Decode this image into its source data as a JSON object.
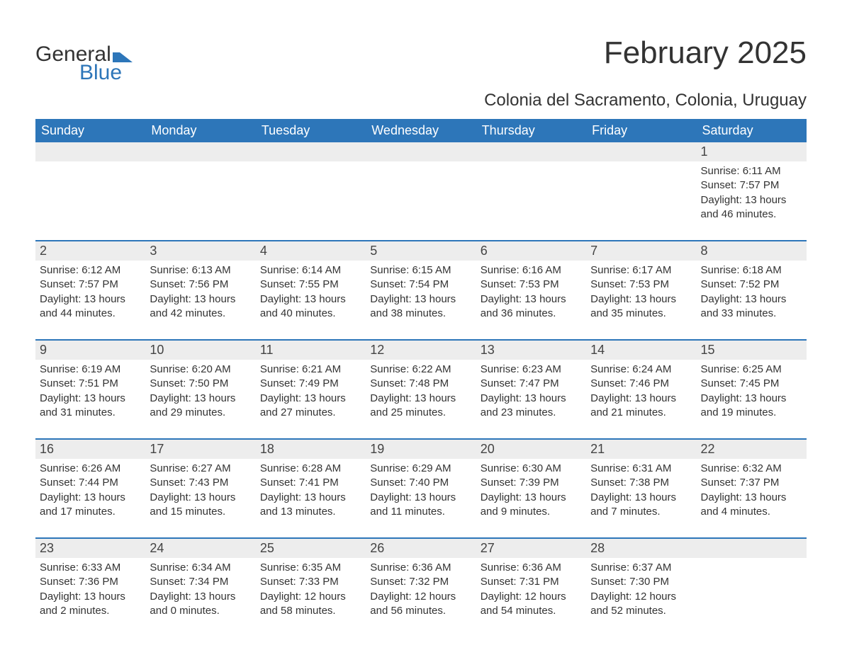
{
  "logo": {
    "text_general": "General",
    "text_blue": "Blue",
    "shape_color": "#2d76b9"
  },
  "title": "February 2025",
  "location": "Colonia del Sacramento, Colonia, Uruguay",
  "colors": {
    "header_bg": "#2d76b9",
    "header_text": "#ffffff",
    "day_number_bg": "#ededed",
    "text": "#333333",
    "background": "#ffffff",
    "row_border": "#2d76b9"
  },
  "day_names": [
    "Sunday",
    "Monday",
    "Tuesday",
    "Wednesday",
    "Thursday",
    "Friday",
    "Saturday"
  ],
  "weeks": [
    [
      {
        "empty": true
      },
      {
        "empty": true
      },
      {
        "empty": true
      },
      {
        "empty": true
      },
      {
        "empty": true
      },
      {
        "empty": true
      },
      {
        "day": "1",
        "sunrise": "Sunrise: 6:11 AM",
        "sunset": "Sunset: 7:57 PM",
        "daylight": "Daylight: 13 hours and 46 minutes."
      }
    ],
    [
      {
        "day": "2",
        "sunrise": "Sunrise: 6:12 AM",
        "sunset": "Sunset: 7:57 PM",
        "daylight": "Daylight: 13 hours and 44 minutes."
      },
      {
        "day": "3",
        "sunrise": "Sunrise: 6:13 AM",
        "sunset": "Sunset: 7:56 PM",
        "daylight": "Daylight: 13 hours and 42 minutes."
      },
      {
        "day": "4",
        "sunrise": "Sunrise: 6:14 AM",
        "sunset": "Sunset: 7:55 PM",
        "daylight": "Daylight: 13 hours and 40 minutes."
      },
      {
        "day": "5",
        "sunrise": "Sunrise: 6:15 AM",
        "sunset": "Sunset: 7:54 PM",
        "daylight": "Daylight: 13 hours and 38 minutes."
      },
      {
        "day": "6",
        "sunrise": "Sunrise: 6:16 AM",
        "sunset": "Sunset: 7:53 PM",
        "daylight": "Daylight: 13 hours and 36 minutes."
      },
      {
        "day": "7",
        "sunrise": "Sunrise: 6:17 AM",
        "sunset": "Sunset: 7:53 PM",
        "daylight": "Daylight: 13 hours and 35 minutes."
      },
      {
        "day": "8",
        "sunrise": "Sunrise: 6:18 AM",
        "sunset": "Sunset: 7:52 PM",
        "daylight": "Daylight: 13 hours and 33 minutes."
      }
    ],
    [
      {
        "day": "9",
        "sunrise": "Sunrise: 6:19 AM",
        "sunset": "Sunset: 7:51 PM",
        "daylight": "Daylight: 13 hours and 31 minutes."
      },
      {
        "day": "10",
        "sunrise": "Sunrise: 6:20 AM",
        "sunset": "Sunset: 7:50 PM",
        "daylight": "Daylight: 13 hours and 29 minutes."
      },
      {
        "day": "11",
        "sunrise": "Sunrise: 6:21 AM",
        "sunset": "Sunset: 7:49 PM",
        "daylight": "Daylight: 13 hours and 27 minutes."
      },
      {
        "day": "12",
        "sunrise": "Sunrise: 6:22 AM",
        "sunset": "Sunset: 7:48 PM",
        "daylight": "Daylight: 13 hours and 25 minutes."
      },
      {
        "day": "13",
        "sunrise": "Sunrise: 6:23 AM",
        "sunset": "Sunset: 7:47 PM",
        "daylight": "Daylight: 13 hours and 23 minutes."
      },
      {
        "day": "14",
        "sunrise": "Sunrise: 6:24 AM",
        "sunset": "Sunset: 7:46 PM",
        "daylight": "Daylight: 13 hours and 21 minutes."
      },
      {
        "day": "15",
        "sunrise": "Sunrise: 6:25 AM",
        "sunset": "Sunset: 7:45 PM",
        "daylight": "Daylight: 13 hours and 19 minutes."
      }
    ],
    [
      {
        "day": "16",
        "sunrise": "Sunrise: 6:26 AM",
        "sunset": "Sunset: 7:44 PM",
        "daylight": "Daylight: 13 hours and 17 minutes."
      },
      {
        "day": "17",
        "sunrise": "Sunrise: 6:27 AM",
        "sunset": "Sunset: 7:43 PM",
        "daylight": "Daylight: 13 hours and 15 minutes."
      },
      {
        "day": "18",
        "sunrise": "Sunrise: 6:28 AM",
        "sunset": "Sunset: 7:41 PM",
        "daylight": "Daylight: 13 hours and 13 minutes."
      },
      {
        "day": "19",
        "sunrise": "Sunrise: 6:29 AM",
        "sunset": "Sunset: 7:40 PM",
        "daylight": "Daylight: 13 hours and 11 minutes."
      },
      {
        "day": "20",
        "sunrise": "Sunrise: 6:30 AM",
        "sunset": "Sunset: 7:39 PM",
        "daylight": "Daylight: 13 hours and 9 minutes."
      },
      {
        "day": "21",
        "sunrise": "Sunrise: 6:31 AM",
        "sunset": "Sunset: 7:38 PM",
        "daylight": "Daylight: 13 hours and 7 minutes."
      },
      {
        "day": "22",
        "sunrise": "Sunrise: 6:32 AM",
        "sunset": "Sunset: 7:37 PM",
        "daylight": "Daylight: 13 hours and 4 minutes."
      }
    ],
    [
      {
        "day": "23",
        "sunrise": "Sunrise: 6:33 AM",
        "sunset": "Sunset: 7:36 PM",
        "daylight": "Daylight: 13 hours and 2 minutes."
      },
      {
        "day": "24",
        "sunrise": "Sunrise: 6:34 AM",
        "sunset": "Sunset: 7:34 PM",
        "daylight": "Daylight: 13 hours and 0 minutes."
      },
      {
        "day": "25",
        "sunrise": "Sunrise: 6:35 AM",
        "sunset": "Sunset: 7:33 PM",
        "daylight": "Daylight: 12 hours and 58 minutes."
      },
      {
        "day": "26",
        "sunrise": "Sunrise: 6:36 AM",
        "sunset": "Sunset: 7:32 PM",
        "daylight": "Daylight: 12 hours and 56 minutes."
      },
      {
        "day": "27",
        "sunrise": "Sunrise: 6:36 AM",
        "sunset": "Sunset: 7:31 PM",
        "daylight": "Daylight: 12 hours and 54 minutes."
      },
      {
        "day": "28",
        "sunrise": "Sunrise: 6:37 AM",
        "sunset": "Sunset: 7:30 PM",
        "daylight": "Daylight: 12 hours and 52 minutes."
      },
      {
        "empty": true
      }
    ]
  ]
}
